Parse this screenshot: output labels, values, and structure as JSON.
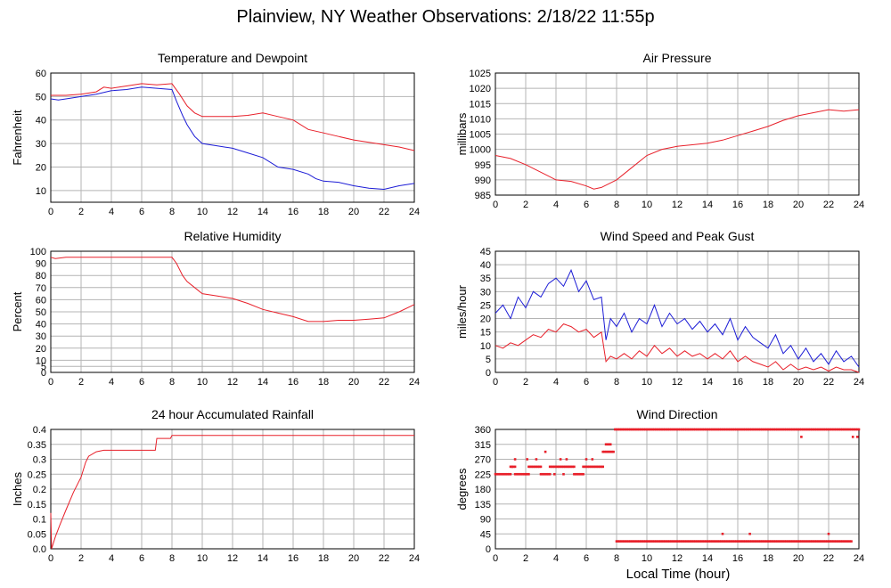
{
  "page": {
    "title": "Plainview, NY Weather Observations: 2/18/22 11:55p",
    "xlabel": "Local Time (hour)"
  },
  "colors": {
    "red": "#e8202a",
    "blue": "#1c1cd6",
    "grid": "#b4b4b4"
  },
  "chart_data": [
    {
      "id": "temp",
      "type": "line",
      "title": "Temperature and Dewpoint",
      "ylabel": "Fahrenheit",
      "xlim": [
        0,
        24
      ],
      "ylim": [
        5,
        60
      ],
      "xticks": [
        0,
        2,
        4,
        6,
        8,
        10,
        12,
        14,
        16,
        18,
        20,
        22,
        24
      ],
      "yticks": [
        10,
        20,
        30,
        40,
        50,
        60
      ],
      "grid": true,
      "series": [
        {
          "color": "#e8202a",
          "x": [
            0,
            1,
            2,
            3,
            3.5,
            4,
            5,
            6,
            7,
            8,
            8.5,
            9,
            9.5,
            10,
            11,
            12,
            13,
            14,
            15,
            16,
            17,
            18,
            19,
            20,
            21,
            22,
            23,
            24
          ],
          "y": [
            50.5,
            50.5,
            51,
            52,
            54,
            53.5,
            54.5,
            55.5,
            55,
            55.5,
            51,
            46,
            43,
            41.5,
            41.5,
            41.5,
            42,
            43,
            41.5,
            40,
            36,
            34.5,
            33,
            31.5,
            30.5,
            29.5,
            28.5,
            27
          ]
        },
        {
          "color": "#1c1cd6",
          "x": [
            0,
            0.5,
            1,
            2,
            3,
            4,
            5,
            6,
            7,
            8,
            8.3,
            8.7,
            9,
            9.5,
            10,
            11,
            12,
            13,
            14,
            15,
            16,
            17,
            17.5,
            18,
            19,
            20,
            21,
            22,
            23,
            24
          ],
          "y": [
            49,
            48.5,
            49,
            50,
            51,
            52.5,
            53,
            54,
            53.5,
            53,
            48,
            42,
            38,
            33,
            30,
            29,
            28,
            26,
            24,
            20,
            19,
            17,
            15,
            14,
            13.5,
            12,
            11,
            10.5,
            12,
            13
          ]
        }
      ]
    },
    {
      "id": "pressure",
      "type": "line",
      "title": "Air Pressure",
      "ylabel": "millibars",
      "xlim": [
        0,
        24
      ],
      "ylim": [
        985,
        1025
      ],
      "xticks": [
        0,
        2,
        4,
        6,
        8,
        10,
        12,
        14,
        16,
        18,
        20,
        22,
        24
      ],
      "yticks": [
        985,
        990,
        995,
        1000,
        1005,
        1010,
        1015,
        1020,
        1025
      ],
      "grid": true,
      "series": [
        {
          "color": "#e8202a",
          "x": [
            0,
            1,
            2,
            3,
            4,
            5,
            6,
            6.5,
            7,
            8,
            9,
            10,
            11,
            12,
            13,
            14,
            15,
            16,
            17,
            18,
            19,
            20,
            21,
            22,
            23,
            24
          ],
          "y": [
            998,
            997,
            995,
            992.5,
            990,
            989.5,
            988,
            987,
            987.5,
            990,
            994,
            998,
            1000,
            1001,
            1001.5,
            1002,
            1003,
            1004.5,
            1006,
            1007.5,
            1009.5,
            1011,
            1012,
            1013,
            1012.5,
            1013
          ]
        }
      ]
    },
    {
      "id": "humidity",
      "type": "line",
      "title": "Relative Humidity",
      "ylabel": "Percent",
      "xlim": [
        0,
        24
      ],
      "ylim": [
        0,
        100
      ],
      "xticks": [
        0,
        2,
        4,
        6,
        8,
        10,
        12,
        14,
        16,
        18,
        20,
        22,
        24
      ],
      "yticks": [
        0,
        5,
        10,
        20,
        30,
        40,
        50,
        60,
        70,
        80,
        90,
        100
      ],
      "grid": true,
      "series": [
        {
          "color": "#e8202a",
          "x": [
            0,
            0.3,
            1,
            2,
            3,
            4,
            5,
            6,
            7,
            8,
            8.3,
            8.7,
            9,
            9.5,
            10,
            11,
            12,
            13,
            14,
            15,
            16,
            17,
            18,
            19,
            20,
            21,
            22,
            23,
            24
          ],
          "y": [
            95,
            94,
            95,
            95,
            95,
            95,
            95,
            95,
            95,
            95,
            90,
            80,
            75,
            70,
            65,
            63,
            61,
            57,
            52,
            49,
            46,
            42,
            42,
            43,
            43,
            44,
            45,
            50,
            56
          ]
        }
      ]
    },
    {
      "id": "wind",
      "type": "line",
      "title": "Wind Speed and Peak Gust",
      "ylabel": "miles/hour",
      "xlim": [
        0,
        24
      ],
      "ylim": [
        0,
        45
      ],
      "xticks": [
        0,
        2,
        4,
        6,
        8,
        10,
        12,
        14,
        16,
        18,
        20,
        22,
        24
      ],
      "yticks": [
        0,
        5,
        10,
        15,
        20,
        25,
        30,
        35,
        40,
        45
      ],
      "grid": true,
      "series": [
        {
          "color": "#1c1cd6",
          "x": [
            0,
            0.5,
            1,
            1.5,
            2,
            2.5,
            3,
            3.5,
            4,
            4.5,
            5,
            5.5,
            6,
            6.5,
            7,
            7.3,
            7.6,
            8,
            8.5,
            9,
            9.5,
            10,
            10.5,
            11,
            11.5,
            12,
            12.5,
            13,
            13.5,
            14,
            14.5,
            15,
            15.5,
            16,
            16.5,
            17,
            17.5,
            18,
            18.5,
            19,
            19.5,
            20,
            20.5,
            21,
            21.5,
            22,
            22.5,
            23,
            23.5,
            24
          ],
          "y": [
            22,
            25,
            20,
            28,
            24,
            30,
            28,
            33,
            35,
            32,
            38,
            30,
            34,
            27,
            28,
            12,
            20,
            17,
            22,
            15,
            20,
            18,
            25,
            17,
            22,
            18,
            20,
            16,
            19,
            15,
            18,
            14,
            20,
            12,
            17,
            13,
            11,
            9,
            14,
            7,
            10,
            5,
            9,
            4,
            7,
            3,
            8,
            4,
            6,
            2
          ]
        },
        {
          "color": "#e8202a",
          "x": [
            0,
            0.5,
            1,
            1.5,
            2,
            2.5,
            3,
            3.5,
            4,
            4.5,
            5,
            5.5,
            6,
            6.5,
            7,
            7.3,
            7.6,
            8,
            8.5,
            9,
            9.5,
            10,
            10.5,
            11,
            11.5,
            12,
            12.5,
            13,
            13.5,
            14,
            14.5,
            15,
            15.5,
            16,
            16.5,
            17,
            17.5,
            18,
            18.5,
            19,
            19.5,
            20,
            20.5,
            21,
            21.5,
            22,
            22.5,
            23,
            23.5,
            24
          ],
          "y": [
            10,
            9,
            11,
            10,
            12,
            14,
            13,
            16,
            15,
            18,
            17,
            15,
            16,
            13,
            15,
            4,
            6,
            5,
            7,
            5,
            8,
            6,
            10,
            7,
            9,
            6,
            8,
            6,
            7,
            5,
            7,
            5,
            8,
            4,
            6,
            4,
            3,
            2,
            4,
            1,
            3,
            1,
            2,
            1,
            2,
            0.5,
            2,
            1,
            1,
            0
          ]
        }
      ]
    },
    {
      "id": "rain",
      "type": "line",
      "title": "24 hour Accumulated Rainfall",
      "ylabel": "Inches",
      "xlim": [
        0,
        24
      ],
      "ylim": [
        0,
        0.4
      ],
      "xticks": [
        0,
        2,
        4,
        6,
        8,
        10,
        12,
        14,
        16,
        18,
        20,
        22,
        24
      ],
      "yticks": [
        0,
        0.05,
        0.1,
        0.15,
        0.2,
        0.25,
        0.3,
        0.35,
        0.4
      ],
      "ytick_labels": [
        "0.0",
        "0.05",
        "0.1",
        "0.15",
        "0.2",
        "0.25",
        "0.3",
        "0.35",
        "0.4"
      ],
      "grid": true,
      "series": [
        {
          "color": "#e8202a",
          "x": [
            0,
            0.05,
            0.3,
            0.6,
            1,
            1.5,
            2,
            2.3,
            2.5,
            3,
            3.5,
            4,
            5,
            6,
            6.9,
            7,
            7.5,
            7.9,
            8,
            9,
            10,
            24
          ],
          "y": [
            0.12,
            0,
            0.04,
            0.08,
            0.13,
            0.19,
            0.24,
            0.29,
            0.31,
            0.325,
            0.33,
            0.33,
            0.33,
            0.33,
            0.33,
            0.37,
            0.37,
            0.37,
            0.38,
            0.38,
            0.38,
            0.38
          ]
        }
      ]
    },
    {
      "id": "direction",
      "type": "scatter",
      "title": "Wind Direction",
      "ylabel": "degrees",
      "xlim": [
        0,
        24
      ],
      "ylim": [
        0,
        360
      ],
      "xticks": [
        0,
        2,
        4,
        6,
        8,
        10,
        12,
        14,
        16,
        18,
        20,
        22,
        24
      ],
      "yticks": [
        0,
        45,
        90,
        135,
        180,
        225,
        270,
        315,
        360
      ],
      "grid": true,
      "series": [
        {
          "color": "#e8202a",
          "segments": [
            {
              "from": 0,
              "to": 1,
              "y": 225
            },
            {
              "from": 1,
              "to": 1.3,
              "y": 247.5
            },
            {
              "from": 1.3,
              "to": 2.2,
              "y": 225
            },
            {
              "from": 2.2,
              "to": 3.0,
              "y": 247.5
            },
            {
              "from": 3.0,
              "to": 3.6,
              "y": 225
            },
            {
              "from": 3.6,
              "to": 5.2,
              "y": 247.5
            },
            {
              "from": 5.2,
              "to": 5.8,
              "y": 225
            },
            {
              "from": 5.8,
              "to": 7.1,
              "y": 247.5
            },
            {
              "from": 7.1,
              "to": 7.8,
              "y": 292.5
            },
            {
              "from": 7.3,
              "to": 7.6,
              "y": 315
            },
            {
              "from": 7.9,
              "to": 24,
              "y": 360
            },
            {
              "from": 8.0,
              "to": 23.5,
              "y": 22.5
            }
          ],
          "points": [
            {
              "x": 1.3,
              "y": 270
            },
            {
              "x": 2.1,
              "y": 270
            },
            {
              "x": 2.7,
              "y": 270
            },
            {
              "x": 3.3,
              "y": 292.5
            },
            {
              "x": 4.3,
              "y": 270
            },
            {
              "x": 4.7,
              "y": 270
            },
            {
              "x": 6.0,
              "y": 270
            },
            {
              "x": 6.4,
              "y": 270
            },
            {
              "x": 1.1,
              "y": 247.5
            },
            {
              "x": 3.9,
              "y": 225
            },
            {
              "x": 4.5,
              "y": 225
            },
            {
              "x": 15.0,
              "y": 45
            },
            {
              "x": 16.8,
              "y": 45
            },
            {
              "x": 22.0,
              "y": 45
            },
            {
              "x": 20.2,
              "y": 337.5
            },
            {
              "x": 23.6,
              "y": 337.5
            },
            {
              "x": 23.9,
              "y": 337.5
            }
          ]
        }
      ]
    }
  ]
}
